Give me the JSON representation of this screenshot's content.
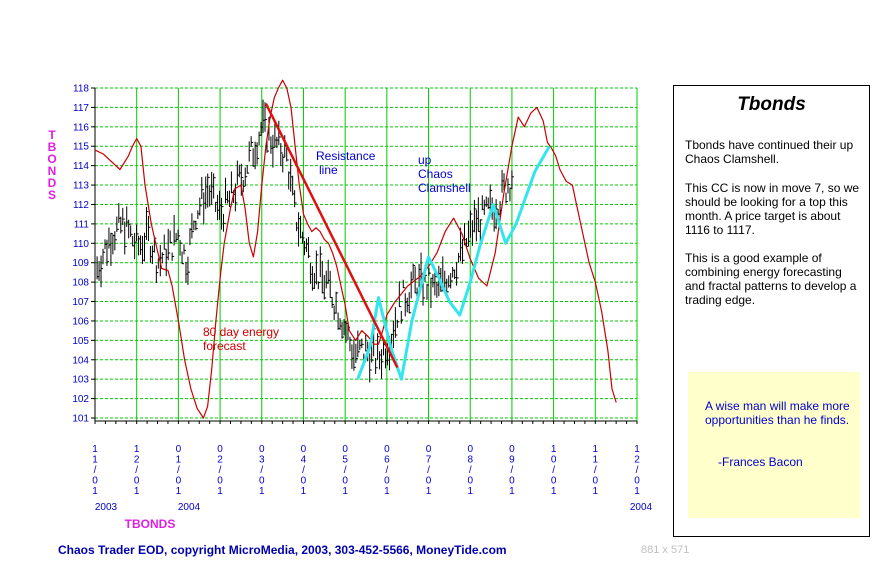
{
  "chart_data": {
    "type": "line",
    "title": "TBONDS",
    "ylabel": "TBONDS",
    "xlabel": "TBONDS",
    "ylim": [
      101,
      118
    ],
    "y_ticks": [
      101,
      102,
      103,
      104,
      105,
      106,
      107,
      108,
      109,
      110,
      111,
      112,
      113,
      114,
      115,
      116,
      117,
      118
    ],
    "y_tick_labels": [
      "101",
      "102",
      "103",
      "104",
      "105",
      "106",
      "107",
      "108",
      "109",
      "110",
      "111",
      "112",
      "113",
      "114",
      "115",
      "116",
      "117",
      "118"
    ],
    "x_tick_labels": [
      "11/01",
      "12/01",
      "01/01",
      "02/01",
      "03/01",
      "04/01",
      "05/01",
      "06/01",
      "07/01",
      "08/01",
      "09/01",
      "10/01",
      "11/01",
      "12/01"
    ],
    "year_labels": [
      "2003",
      "2004",
      "2004"
    ],
    "grid": true,
    "series": [
      {
        "name": "80 day energy forecast",
        "color": "#cc0000",
        "points": [
          [
            0,
            114.8
          ],
          [
            0.2,
            114.6
          ],
          [
            0.4,
            114.2
          ],
          [
            0.6,
            113.8
          ],
          [
            0.8,
            114.5
          ],
          [
            0.9,
            115.0
          ],
          [
            1.0,
            115.4
          ],
          [
            1.1,
            115.0
          ],
          [
            1.2,
            113.0
          ],
          [
            1.35,
            111.0
          ],
          [
            1.5,
            109.6
          ],
          [
            1.6,
            108.7
          ],
          [
            1.75,
            108.6
          ],
          [
            1.85,
            107.8
          ],
          [
            2.0,
            106.0
          ],
          [
            2.15,
            104.0
          ],
          [
            2.3,
            102.5
          ],
          [
            2.45,
            101.5
          ],
          [
            2.6,
            101.0
          ],
          [
            2.7,
            101.6
          ],
          [
            2.8,
            103.5
          ],
          [
            2.9,
            106.0
          ],
          [
            3.0,
            108.2
          ],
          [
            3.1,
            110.0
          ],
          [
            3.25,
            111.8
          ],
          [
            3.35,
            112.8
          ],
          [
            3.5,
            113.0
          ],
          [
            3.6,
            111.8
          ],
          [
            3.7,
            110.0
          ],
          [
            3.8,
            109.3
          ],
          [
            3.9,
            110.6
          ],
          [
            4.0,
            113.0
          ],
          [
            4.1,
            115.0
          ],
          [
            4.2,
            116.5
          ],
          [
            4.3,
            117.5
          ],
          [
            4.4,
            118.0
          ],
          [
            4.5,
            118.4
          ],
          [
            4.6,
            118.0
          ],
          [
            4.7,
            117.0
          ],
          [
            4.8,
            115.0
          ],
          [
            4.9,
            113.0
          ],
          [
            5.0,
            111.5
          ],
          [
            5.1,
            111.0
          ],
          [
            5.2,
            110.6
          ],
          [
            5.3,
            110.8
          ],
          [
            5.4,
            110.6
          ],
          [
            5.5,
            110.2
          ],
          [
            5.6,
            110.0
          ],
          [
            5.7,
            109.5
          ],
          [
            5.8,
            108.8
          ],
          [
            5.9,
            107.8
          ],
          [
            6.0,
            106.8
          ],
          [
            6.1,
            105.5
          ],
          [
            6.25,
            105.0
          ],
          [
            6.4,
            105.5
          ],
          [
            6.55,
            105.2
          ],
          [
            6.7,
            104.8
          ],
          [
            6.8,
            104.8
          ],
          [
            6.9,
            105.5
          ],
          [
            7.0,
            106.3
          ],
          [
            7.2,
            107.0
          ],
          [
            7.5,
            107.8
          ],
          [
            7.8,
            108.3
          ],
          [
            8.0,
            108.8
          ],
          [
            8.2,
            109.5
          ],
          [
            8.4,
            110.6
          ],
          [
            8.6,
            111.3
          ],
          [
            8.8,
            110.5
          ],
          [
            9.0,
            109.2
          ],
          [
            9.2,
            108.2
          ],
          [
            9.4,
            107.8
          ],
          [
            9.6,
            109.5
          ],
          [
            9.8,
            112.5
          ],
          [
            10.0,
            115.0
          ],
          [
            10.15,
            116.5
          ],
          [
            10.3,
            116.0
          ],
          [
            10.45,
            116.7
          ],
          [
            10.6,
            117.0
          ],
          [
            10.75,
            116.3
          ],
          [
            10.85,
            115.2
          ],
          [
            10.95,
            114.9
          ],
          [
            11.05,
            114.5
          ],
          [
            11.15,
            113.8
          ],
          [
            11.3,
            113.2
          ],
          [
            11.45,
            113.0
          ],
          [
            11.55,
            112.0
          ],
          [
            11.7,
            110.5
          ],
          [
            11.85,
            109.0
          ],
          [
            12.0,
            108.0
          ],
          [
            12.15,
            106.5
          ],
          [
            12.3,
            104.5
          ],
          [
            12.4,
            102.5
          ],
          [
            12.5,
            101.8
          ]
        ]
      },
      {
        "name": "up Chaos Clamshell",
        "color": "#33e6ee",
        "points": [
          [
            6.3,
            103.0
          ],
          [
            6.6,
            104.7
          ],
          [
            6.8,
            107.2
          ],
          [
            7.1,
            104.6
          ],
          [
            7.35,
            103.0
          ],
          [
            7.6,
            106.0
          ],
          [
            8.0,
            109.3
          ],
          [
            8.25,
            108.2
          ],
          [
            8.5,
            107.0
          ],
          [
            8.75,
            106.3
          ],
          [
            9.0,
            108.0
          ],
          [
            9.25,
            110.0
          ],
          [
            9.55,
            112.0
          ],
          [
            9.85,
            110.0
          ],
          [
            10.1,
            111.0
          ],
          [
            10.55,
            113.7
          ],
          [
            10.9,
            115.0
          ]
        ]
      },
      {
        "name": "Resistance line",
        "color": "#dd1111",
        "points": [
          [
            4.1,
            117.2
          ],
          [
            7.25,
            103.6
          ]
        ]
      }
    ],
    "annotations": [
      {
        "text": "80 day energy",
        "color": "#cc0000"
      },
      {
        "text": "forecast",
        "color": "#cc0000"
      },
      {
        "text": "Resistance",
        "color": "#0000cc"
      },
      {
        "text": "line",
        "color": "#0000cc"
      },
      {
        "text": "up",
        "color": "#0000cc"
      },
      {
        "text": "Chaos",
        "color": "#0000cc"
      },
      {
        "text": "Clamshell",
        "color": "#0000cc"
      }
    ]
  },
  "panel": {
    "title": "Tbonds",
    "p1": "Tbonds have continued their up Chaos Clamshell.",
    "p2": "This CC is now in move 7, so we should be looking for a top this month. A price target is about 1116 to 1117.",
    "p3": "This is a good example of combining energy forecasting and fractal patterns to develop a trading edge.",
    "quote": "A wise man will make more opportunities than he finds.",
    "quote_author": "-Frances Bacon"
  },
  "footer": {
    "credit": "Chaos Trader EOD, copyright MicroMedia, 2003, 303-452-5566, MoneyTide.com",
    "dimensions": "881 x 571"
  },
  "colors": {
    "grid": "#00cc00",
    "axis_text": "#0000cc",
    "ylabel": "#e020e0",
    "bars": "#000000",
    "energy": "#cc0000",
    "clamshell": "#33e6ee",
    "resistance": "#dd1111"
  }
}
